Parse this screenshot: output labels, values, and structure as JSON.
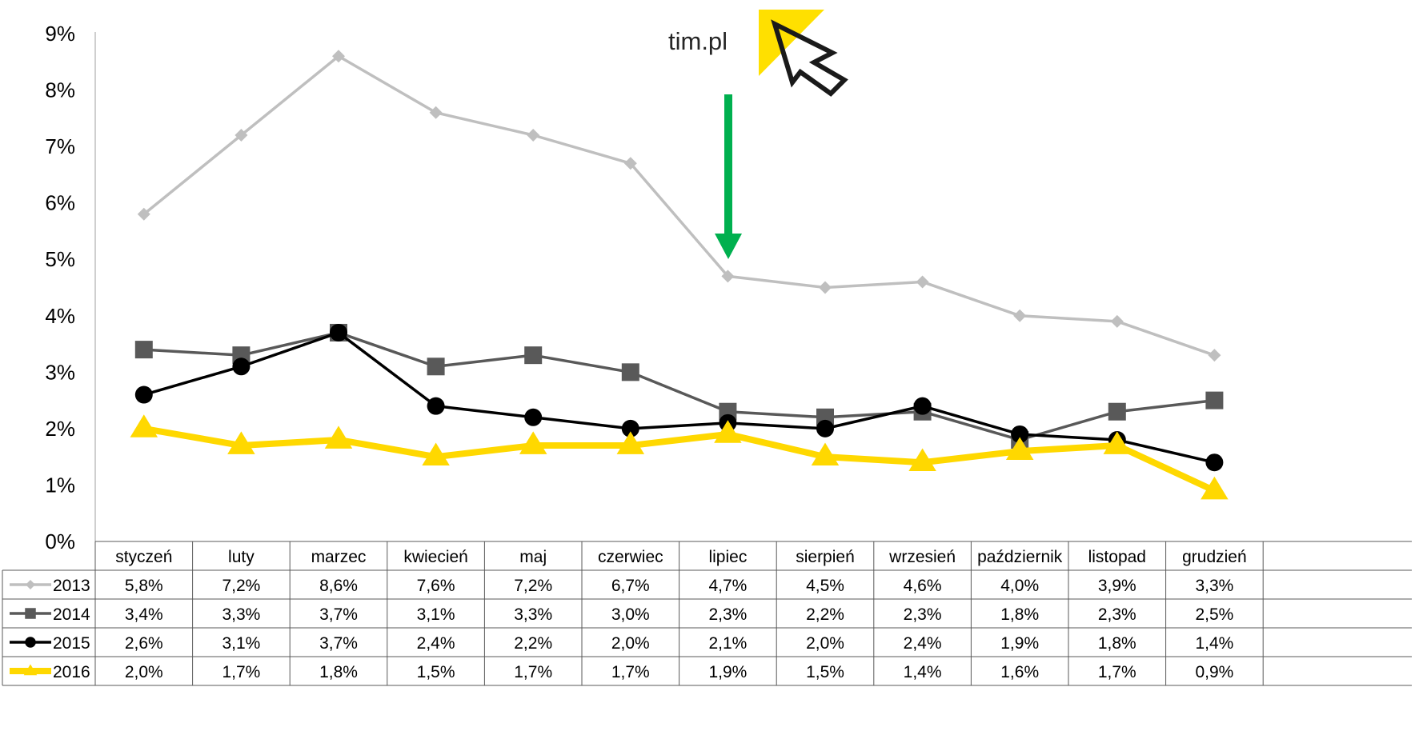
{
  "logo": {
    "text": "tim.pl",
    "colors": {
      "brand_yellow": "#FFE000",
      "cursor": "#1a1a1a"
    }
  },
  "annotation": {
    "icon": "arrow-down-icon",
    "color": "#00B04F"
  },
  "chart_data": {
    "type": "line",
    "categories": [
      "styczeń",
      "luty",
      "marzec",
      "kwiecień",
      "maj",
      "czerwiec",
      "lipiec",
      "sierpień",
      "wrzesień",
      "październik",
      "listopad",
      "grudzień"
    ],
    "ylim": [
      0,
      9
    ],
    "y_ticks": [
      "0%",
      "1%",
      "2%",
      "3%",
      "4%",
      "5%",
      "6%",
      "7%",
      "8%",
      "9%"
    ],
    "grid": false,
    "legend": "data-table-below",
    "series": [
      {
        "name": "2013",
        "color": "#BFBFBF",
        "marker": "diamond",
        "values": [
          5.8,
          7.2,
          8.6,
          7.6,
          7.2,
          6.7,
          4.7,
          4.5,
          4.6,
          4.0,
          3.9,
          3.3
        ],
        "labels": [
          "5,8%",
          "7,2%",
          "8,6%",
          "7,6%",
          "7,2%",
          "6,7%",
          "4,7%",
          "4,5%",
          "4,6%",
          "4,0%",
          "3,9%",
          "3,3%"
        ]
      },
      {
        "name": "2014",
        "color": "#595959",
        "marker": "square",
        "values": [
          3.4,
          3.3,
          3.7,
          3.1,
          3.3,
          3.0,
          2.3,
          2.2,
          2.3,
          1.8,
          2.3,
          2.5
        ],
        "labels": [
          "3,4%",
          "3,3%",
          "3,7%",
          "3,1%",
          "3,3%",
          "3,0%",
          "2,3%",
          "2,2%",
          "2,3%",
          "1,8%",
          "2,3%",
          "2,5%"
        ]
      },
      {
        "name": "2015",
        "color": "#000000",
        "marker": "circle",
        "values": [
          2.6,
          3.1,
          3.7,
          2.4,
          2.2,
          2.0,
          2.1,
          2.0,
          2.4,
          1.9,
          1.8,
          1.4
        ],
        "labels": [
          "2,6%",
          "3,1%",
          "3,7%",
          "2,4%",
          "2,2%",
          "2,0%",
          "2,1%",
          "2,0%",
          "2,4%",
          "1,9%",
          "1,8%",
          "1,4%"
        ]
      },
      {
        "name": "2016",
        "color": "#FFD800",
        "marker": "triangle",
        "values": [
          2.0,
          1.7,
          1.8,
          1.5,
          1.7,
          1.7,
          1.9,
          1.5,
          1.4,
          1.6,
          1.7,
          0.9
        ],
        "labels": [
          "2,0%",
          "1,7%",
          "1,8%",
          "1,5%",
          "1,7%",
          "1,7%",
          "1,9%",
          "1,5%",
          "1,4%",
          "1,6%",
          "1,7%",
          "0,9%"
        ]
      }
    ]
  }
}
